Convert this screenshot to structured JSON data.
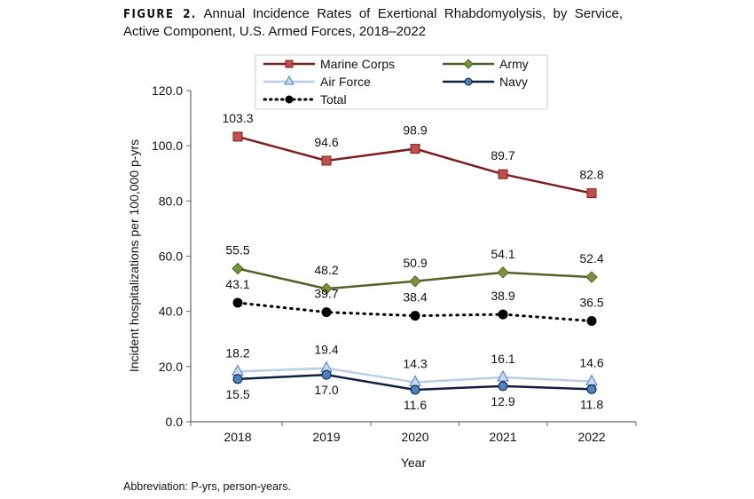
{
  "title": {
    "label": "FIGURE 2.",
    "text": "Annual Incidence Rates of Exertional Rhabdomyolysis, by Service, Active Component, U.S. Armed Forces, 2018–2022"
  },
  "note": "Abbreviation: P-yrs, person-years.",
  "chart_data": {
    "type": "line",
    "xlabel": "Year",
    "ylabel": "Incident hospitalizations per 100,000 p-yrs",
    "ylim": [
      0,
      120
    ],
    "yticks": [
      "0.0",
      "20.0",
      "40.0",
      "60.0",
      "80.0",
      "100.0",
      "120.0"
    ],
    "categories": [
      "2018",
      "2019",
      "2020",
      "2021",
      "2022"
    ],
    "grid": false,
    "legend": "top",
    "series": [
      {
        "name": "Marine Corps",
        "values": [
          103.3,
          94.6,
          98.9,
          89.7,
          82.8
        ],
        "labels": [
          "103.3",
          "94.6",
          "98.9",
          "89.7",
          "82.8"
        ],
        "color": "#7b2020",
        "marker": "square",
        "marker_color": "#c0504d"
      },
      {
        "name": "Army",
        "values": [
          55.5,
          48.2,
          50.9,
          54.1,
          52.4
        ],
        "labels": [
          "55.5",
          "48.2",
          "50.9",
          "54.1",
          "52.4"
        ],
        "color": "#4f6228",
        "marker": "diamond",
        "marker_color": "#77933c"
      },
      {
        "name": "Air Force",
        "values": [
          18.2,
          19.4,
          14.3,
          16.1,
          14.6
        ],
        "labels": [
          "18.2",
          "19.4",
          "14.3",
          "16.1",
          "14.6"
        ],
        "color": "#b9cde5",
        "marker": "triangle",
        "marker_color": "#8eb4e3"
      },
      {
        "name": "Navy",
        "values": [
          15.5,
          17.0,
          11.6,
          12.9,
          11.8
        ],
        "labels": [
          "15.5",
          "17.0",
          "11.6",
          "12.9",
          "11.8"
        ],
        "color": "#0f1f3d",
        "marker": "circle",
        "marker_color": "#4f81bd"
      },
      {
        "name": "Total",
        "values": [
          43.1,
          39.7,
          38.4,
          38.9,
          36.5
        ],
        "labels": [
          "43.1",
          "39.7",
          "38.4",
          "38.9",
          "36.5"
        ],
        "color": "#000000",
        "marker": "circle",
        "marker_color": "#000000",
        "dash": "dotted"
      }
    ]
  }
}
